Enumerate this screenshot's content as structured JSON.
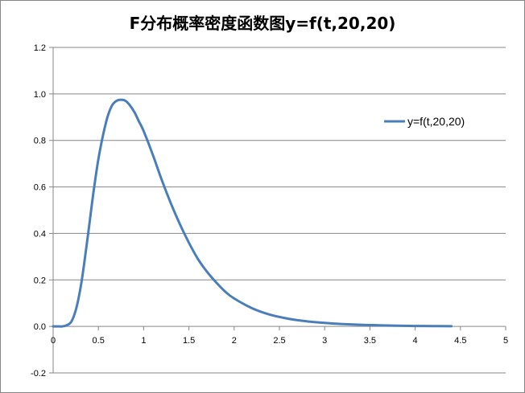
{
  "chart_data": {
    "type": "line",
    "title": "F分布概率密度函数图y=f(t,20,20)",
    "xlabel": "",
    "ylabel": "",
    "xlim": [
      0,
      5
    ],
    "ylim": [
      -0.2,
      1.2
    ],
    "x_ticks": [
      "0",
      "0.5",
      "1",
      "1.5",
      "2",
      "2.5",
      "3",
      "3.5",
      "4",
      "4.5",
      "5"
    ],
    "y_ticks": [
      "-0.2",
      "0.0",
      "0.2",
      "0.4",
      "0.6",
      "0.8",
      "1.0",
      "1.2"
    ],
    "grid": "horizontal",
    "legend_position": "right",
    "series": [
      {
        "name": "y=f(t,20,20)",
        "color": "#4a7ebb",
        "x": [
          0.0,
          0.05,
          0.1,
          0.15,
          0.2,
          0.25,
          0.3,
          0.35,
          0.4,
          0.45,
          0.5,
          0.55,
          0.6,
          0.65,
          0.7,
          0.75,
          0.8,
          0.85,
          0.9,
          0.95,
          1.0,
          1.1,
          1.2,
          1.3,
          1.4,
          1.5,
          1.6,
          1.7,
          1.8,
          1.9,
          2.0,
          2.2,
          2.4,
          2.6,
          2.8,
          3.0,
          3.2,
          3.4,
          3.6,
          3.8,
          4.0,
          4.2,
          4.4
        ],
        "y": [
          0.0,
          0.0,
          0.0,
          0.005,
          0.02,
          0.07,
          0.16,
          0.29,
          0.44,
          0.59,
          0.72,
          0.82,
          0.9,
          0.95,
          0.97,
          0.975,
          0.97,
          0.95,
          0.92,
          0.88,
          0.84,
          0.74,
          0.63,
          0.53,
          0.44,
          0.36,
          0.29,
          0.235,
          0.19,
          0.15,
          0.12,
          0.078,
          0.05,
          0.033,
          0.022,
          0.015,
          0.01,
          0.007,
          0.005,
          0.003,
          0.002,
          0.0015,
          0.001
        ]
      }
    ]
  }
}
